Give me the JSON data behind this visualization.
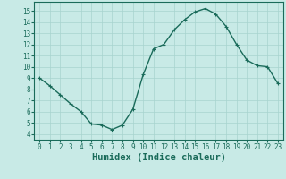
{
  "x": [
    0,
    1,
    2,
    3,
    4,
    5,
    6,
    7,
    8,
    9,
    10,
    11,
    12,
    13,
    14,
    15,
    16,
    17,
    18,
    19,
    20,
    21,
    22,
    23
  ],
  "y": [
    9,
    8.3,
    7.5,
    6.7,
    6.0,
    4.9,
    4.8,
    4.4,
    4.8,
    6.2,
    9.3,
    11.6,
    12.0,
    13.3,
    14.2,
    14.9,
    15.2,
    14.7,
    13.6,
    12.0,
    10.6,
    10.1,
    10.0,
    8.5
  ],
  "line_color": "#1a6b5a",
  "marker": "+",
  "bg_color": "#c8eae6",
  "grid_color": "#a8d4ce",
  "xlabel": "Humidex (Indice chaleur)",
  "ylim": [
    3.5,
    15.8
  ],
  "xlim": [
    -0.5,
    23.5
  ],
  "yticks": [
    4,
    5,
    6,
    7,
    8,
    9,
    10,
    11,
    12,
    13,
    14,
    15
  ],
  "xticks": [
    0,
    1,
    2,
    3,
    4,
    5,
    6,
    7,
    8,
    9,
    10,
    11,
    12,
    13,
    14,
    15,
    16,
    17,
    18,
    19,
    20,
    21,
    22,
    23
  ],
  "label_fontsize": 7.5,
  "tick_fontsize": 5.5,
  "linewidth": 1.0,
  "markersize": 3.5,
  "markeredgewidth": 0.8
}
